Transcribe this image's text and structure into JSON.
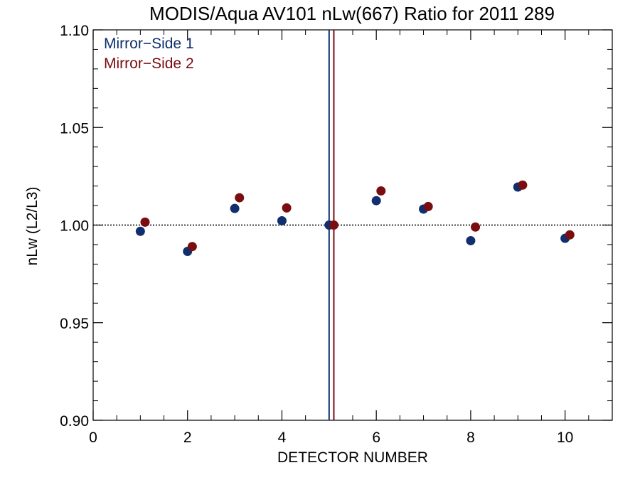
{
  "chart_data": {
    "type": "scatter",
    "title": "MODIS/Aqua AV101 nLw(667) Ratio for 2011 289",
    "xlabel": "DETECTOR NUMBER",
    "ylabel": "nLw (L2/L3)",
    "xlim": [
      0,
      11
    ],
    "ylim": [
      0.9,
      1.1
    ],
    "x_ticks": [
      0,
      2,
      4,
      6,
      8,
      10
    ],
    "x_tick_labels": [
      "0",
      "2",
      "4",
      "6",
      "8",
      "10"
    ],
    "y_ticks": [
      0.9,
      0.95,
      1.0,
      1.05,
      1.1
    ],
    "y_tick_labels": [
      "0.90",
      "0.95",
      "1.00",
      "1.05",
      "1.10"
    ],
    "reference_line_y": 1.0,
    "legend_position": "top-left",
    "series": [
      {
        "name": "Mirror−Side 1",
        "color": "#0f2f6e",
        "x": [
          1,
          2,
          3,
          4,
          5,
          6,
          7,
          8,
          9,
          10
        ],
        "y": [
          0.9968,
          0.9865,
          1.0085,
          1.0022,
          1.0,
          1.0125,
          1.0082,
          0.992,
          1.0195,
          0.9932
        ],
        "vertical_line_x": 5.0
      },
      {
        "name": "Mirror−Side 2",
        "color": "#7a0d10",
        "x": [
          1.1,
          2.1,
          3.1,
          4.1,
          5.1,
          6.1,
          7.1,
          8.1,
          9.1,
          10.1
        ],
        "y": [
          1.0015,
          0.989,
          1.014,
          1.0088,
          1.0,
          1.0175,
          1.0095,
          0.999,
          1.0205,
          0.995
        ],
        "vertical_line_x": 5.1
      }
    ]
  }
}
